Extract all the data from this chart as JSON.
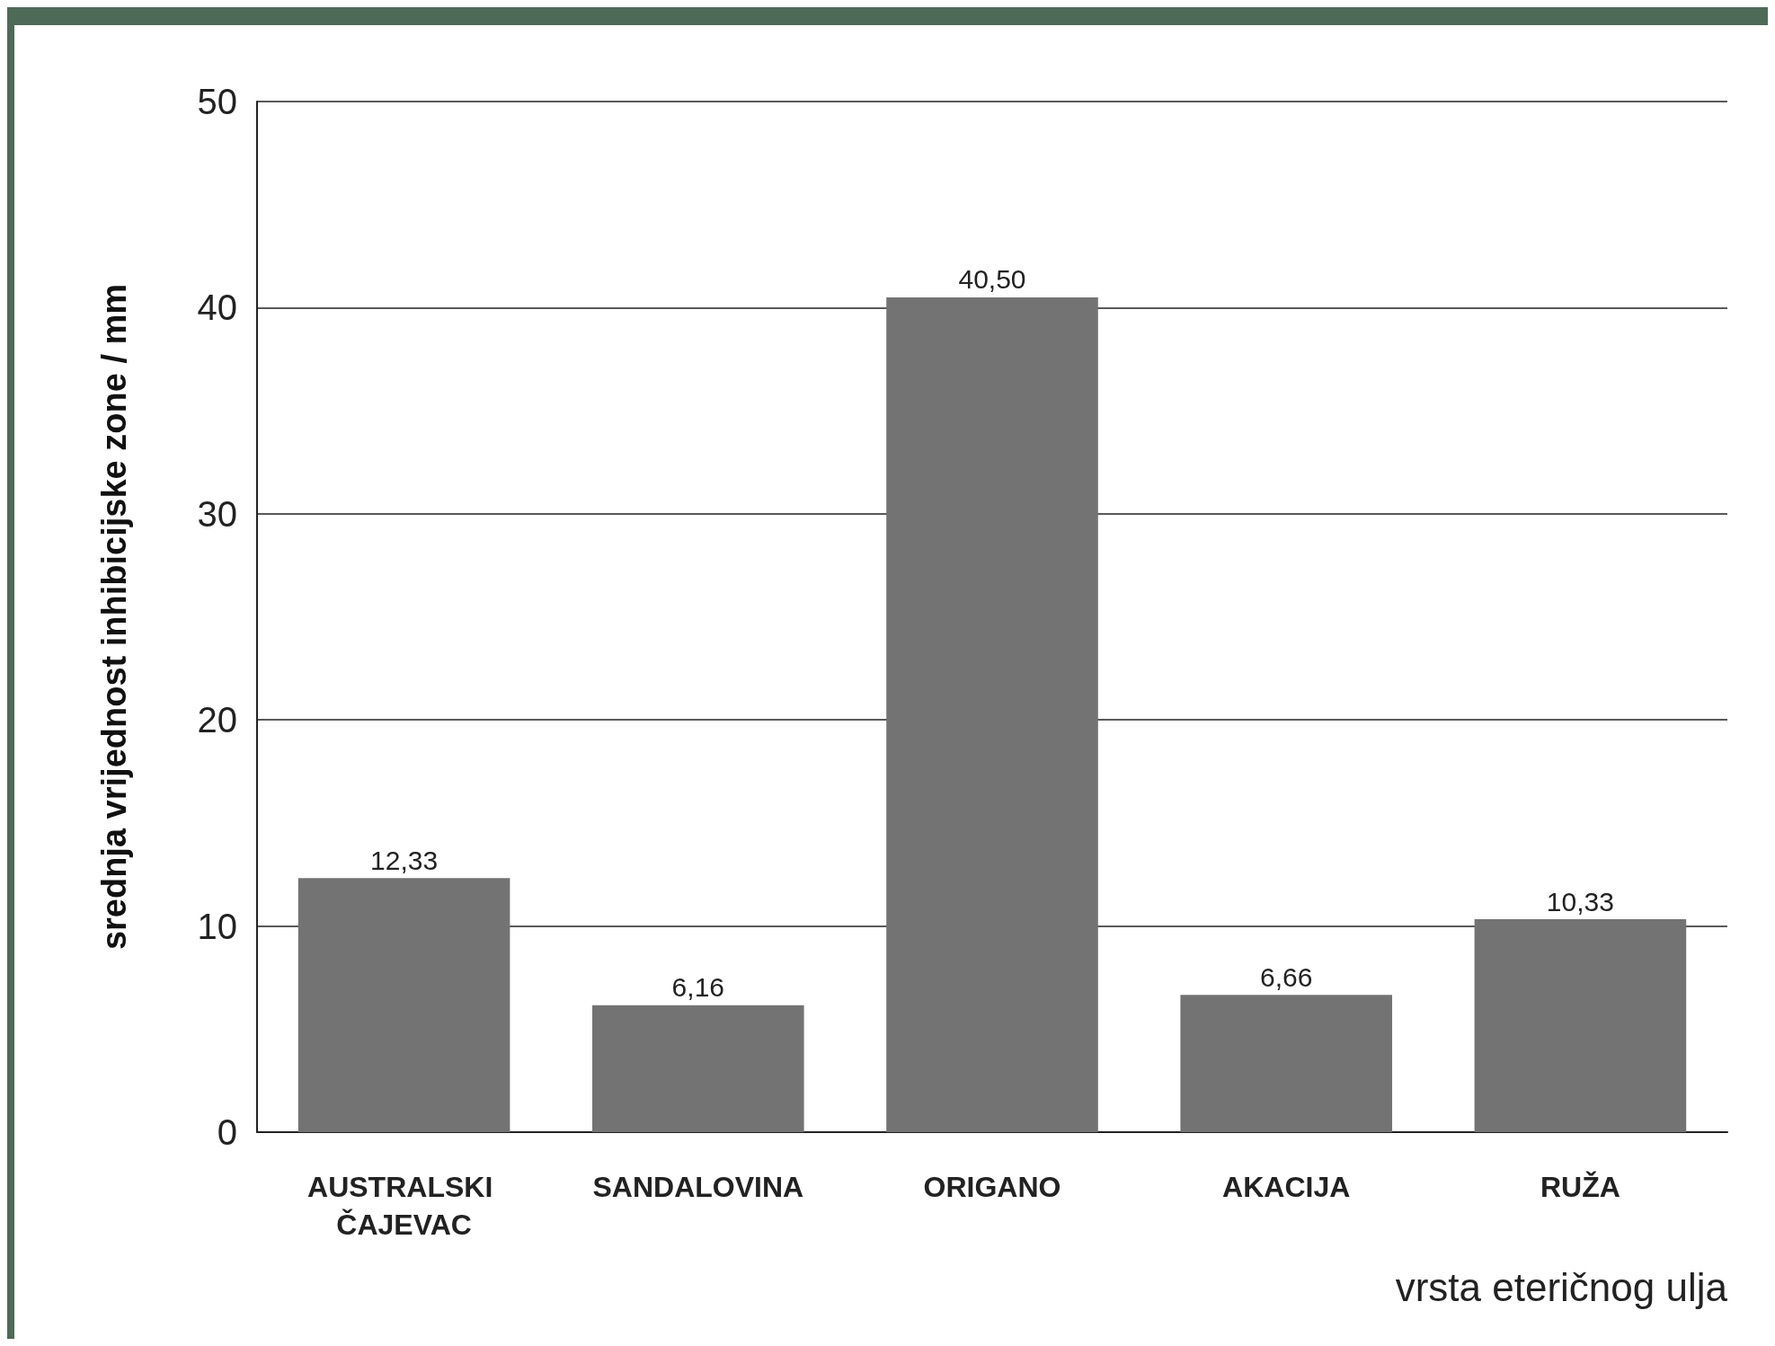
{
  "chart_data": {
    "type": "bar",
    "xlabel": "vrsta eteričnog ulja",
    "ylabel": "srednja vrijednost inhibicijske zone / mm",
    "categories": [
      "AUSTRALSKI ČAJEVAC",
      "SANDALOVINA",
      "ORIGANO",
      "AKACIJA",
      "RUŽA"
    ],
    "values": [
      12.33,
      6.16,
      40.5,
      6.66,
      10.33
    ],
    "value_labels": [
      "12,33",
      "6,16",
      "40,50",
      "6,66",
      "10,33"
    ],
    "color": "#737373",
    "ylim": [
      0,
      50
    ],
    "yticks": [
      0,
      10,
      20,
      30,
      40,
      50
    ],
    "grid": "y"
  }
}
